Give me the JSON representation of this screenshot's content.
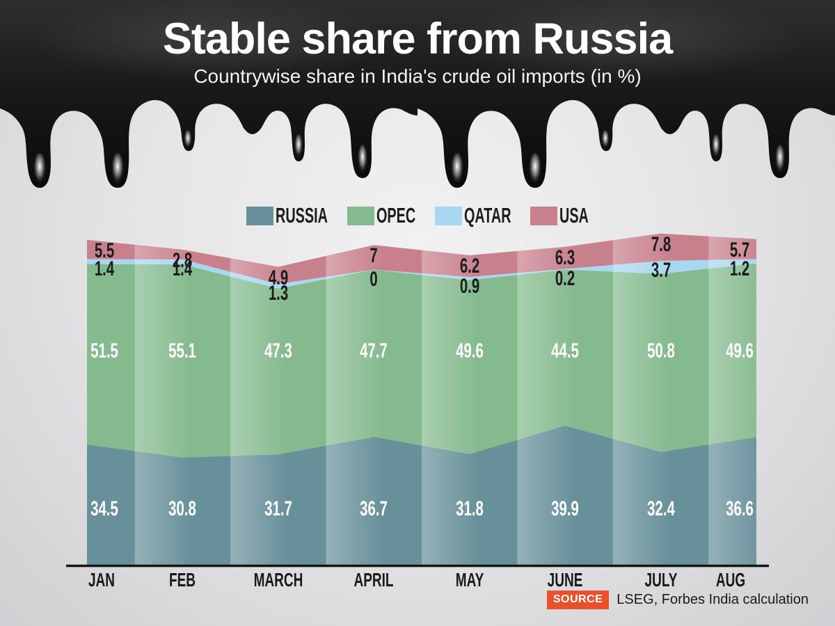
{
  "header": {
    "title": "Stable share from Russia",
    "subtitle": "Countrywise share in India's crude oil imports (in %)"
  },
  "legend": [
    {
      "label": "RUSSIA",
      "color": "#68909a"
    },
    {
      "label": "OPEC",
      "color": "#84ba8e"
    },
    {
      "label": "QATAR",
      "color": "#a8d7ef"
    },
    {
      "label": "USA",
      "color": "#c8808d"
    }
  ],
  "chart_data": {
    "type": "area",
    "stacked": true,
    "title": "Countrywise share in India's crude oil imports (in %)",
    "categories": [
      "JAN",
      "FEB",
      "MARCH",
      "APRIL",
      "MAY",
      "JUNE",
      "JULY",
      "AUG"
    ],
    "series": [
      {
        "name": "RUSSIA",
        "color": "#68909a",
        "label_color": "#ffffff",
        "values": [
          34.5,
          30.8,
          31.7,
          36.7,
          31.8,
          39.9,
          32.4,
          36.6
        ]
      },
      {
        "name": "OPEC",
        "color": "#84ba8e",
        "label_color": "#ffffff",
        "values": [
          51.5,
          55.1,
          47.3,
          47.7,
          49.6,
          44.5,
          50.8,
          49.6
        ]
      },
      {
        "name": "QATAR",
        "color": "#a8d7ef",
        "label_color": "#1c1c1c",
        "values": [
          1.4,
          1.4,
          1.3,
          0,
          0.9,
          0.2,
          3.7,
          1.2
        ]
      },
      {
        "name": "USA",
        "color": "#c8808d",
        "label_color": "#1c1c1c",
        "values": [
          5.5,
          2.8,
          4.9,
          7,
          6.2,
          6.3,
          7.8,
          5.7
        ]
      }
    ],
    "unit": "%",
    "ylim": [
      0,
      100
    ],
    "grid": false,
    "legend_position": "top"
  },
  "source": {
    "badge": "SOURCE",
    "badge_color": "#e8512c",
    "text": "LSEG, Forbes India calculation"
  }
}
